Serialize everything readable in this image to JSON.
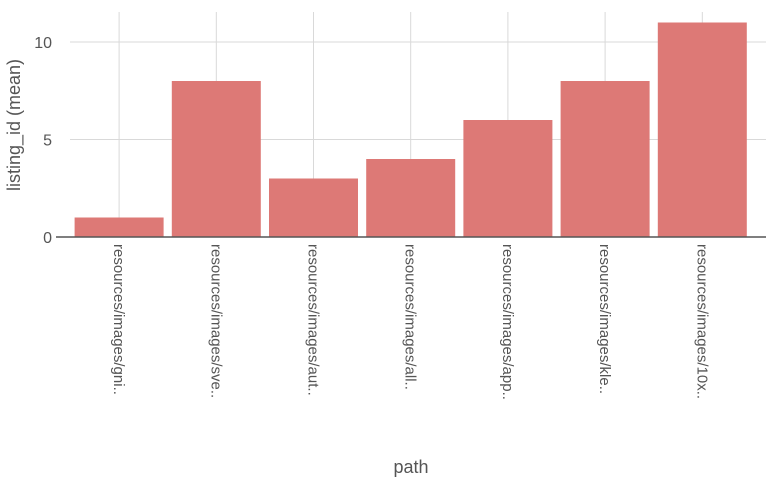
{
  "chart_data": {
    "type": "bar",
    "categories": [
      "resources/images/gni..",
      "resources/images/sve..",
      "resources/images/aut..",
      "resources/images/all..",
      "resources/images/app..",
      "resources/images/kle..",
      "resources/images/10x.."
    ],
    "values": [
      1,
      8,
      3,
      4,
      6,
      8,
      11
    ],
    "title": "",
    "xlabel": "path",
    "ylabel": "listing_id (mean)",
    "ylim": [
      0,
      11.5
    ],
    "yticks": [
      0,
      5,
      10
    ],
    "grid": true,
    "bar_color": "#dd7976",
    "grid_color": "#d9d9d9",
    "axis_color": "#555555",
    "text_color": "#555555"
  }
}
